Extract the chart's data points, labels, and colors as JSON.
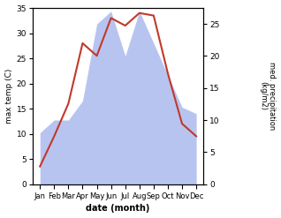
{
  "months": [
    "Jan",
    "Feb",
    "Mar",
    "Apr",
    "May",
    "Jun",
    "Jul",
    "Aug",
    "Sep",
    "Oct",
    "Nov",
    "Dec"
  ],
  "temp": [
    3.5,
    9.5,
    16.0,
    28.0,
    25.5,
    33.0,
    31.5,
    34.0,
    33.5,
    22.0,
    12.0,
    9.5
  ],
  "precip": [
    8,
    10,
    10,
    13,
    25,
    27,
    20,
    27,
    22,
    17,
    12,
    11
  ],
  "temp_color": "#c0392b",
  "precip_color": "#b8c4f0",
  "temp_ylim": [
    0,
    35
  ],
  "precip_ylim": [
    0,
    27.5
  ],
  "temp_yticks": [
    0,
    5,
    10,
    15,
    20,
    25,
    30,
    35
  ],
  "precip_yticks": [
    0,
    5,
    10,
    15,
    20,
    25
  ],
  "xlabel": "date (month)",
  "ylabel_left": "max temp (C)",
  "ylabel_right": "med. precipitation\n(kg/m2)",
  "bg_color": "#ffffff",
  "spine_color": "#aaaaaa"
}
